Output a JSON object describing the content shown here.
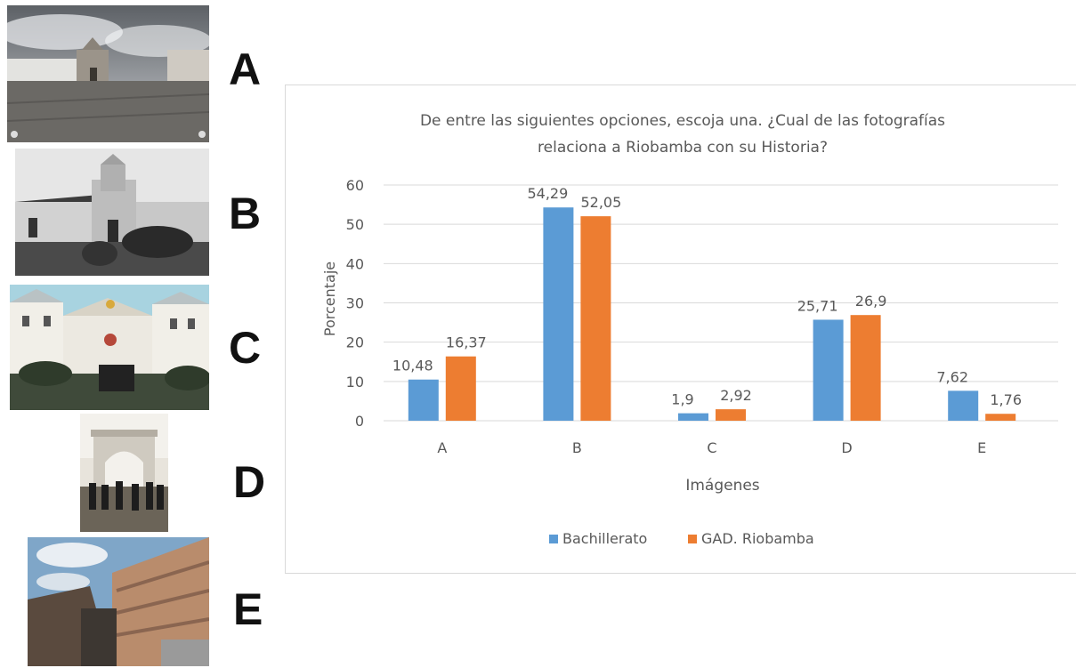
{
  "photos": [
    {
      "letter": "A"
    },
    {
      "letter": "B"
    },
    {
      "letter": "C"
    },
    {
      "letter": "D"
    },
    {
      "letter": "E"
    }
  ],
  "colors": {
    "series1": "#5b9bd5",
    "series2": "#ed7d31",
    "grid": "#d9d9d9",
    "text": "#595959"
  },
  "chart_data": {
    "type": "bar",
    "title_line1": "De entre las siguientes opciones, escoja una. ¿Cual de las fotografías",
    "title_line2": "relaciona a Riobamba con su Historia?",
    "xlabel": "Imágenes",
    "ylabel": "Porcentaje",
    "categories": [
      "A",
      "B",
      "C",
      "D",
      "E"
    ],
    "yticks": [
      "0",
      "10",
      "20",
      "30",
      "40",
      "50",
      "60"
    ],
    "ylim": [
      0,
      60
    ],
    "grid": true,
    "legend_position": "bottom",
    "series": [
      {
        "name": "Bachillerato",
        "values": [
          10.48,
          54.29,
          1.9,
          25.71,
          7.62
        ],
        "labels": [
          "10,48",
          "54,29",
          "1,9",
          "25,71",
          "7,62"
        ]
      },
      {
        "name": "GAD. Riobamba",
        "values": [
          16.37,
          52.05,
          2.92,
          26.9,
          1.76
        ],
        "labels": [
          "16,37",
          "52,05",
          "2,92",
          "26,9",
          "1,76"
        ]
      }
    ]
  }
}
